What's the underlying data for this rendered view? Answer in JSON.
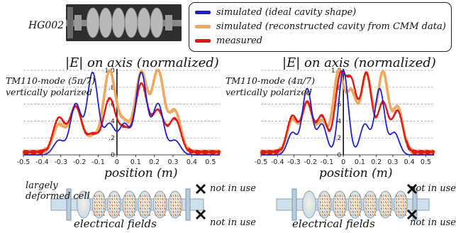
{
  "cavity_label": "HG002",
  "legend": [
    {
      "label": "simulated (ideal cavity shape)",
      "color": "#2020d0"
    },
    {
      "label": "simulated (reconstructed cavity from CMM data)",
      "color": "#f0a860"
    },
    {
      "label": "measured",
      "color": "#e01818"
    }
  ],
  "colors": {
    "ideal": "#2020d0",
    "reconstructed": "#f0a860",
    "measured": "#e01818"
  },
  "annotations": {
    "deformed_cell": "largely deformed cell",
    "electrical_fields": "electrical fields",
    "not_in_use": "not in use"
  },
  "chart_data": [
    {
      "type": "line",
      "title": "|E| on axis (normalized)",
      "mode_label_line1": "TM110-mode (5π/7)",
      "mode_label_line2": "vertically polarized",
      "xlabel": "position (m)",
      "xlim": [
        -0.5,
        0.55
      ],
      "ylim": [
        0,
        1.0
      ],
      "x_ticks": [
        -0.5,
        -0.4,
        -0.3,
        -0.2,
        -0.1,
        0,
        0.1,
        0.2,
        0.3,
        0.4,
        0.5
      ],
      "x_tick_labels": [
        "-0.5",
        "-0.4",
        "-0.3",
        "-0.2",
        "-0.1",
        "0",
        "0.1",
        "0.2",
        "0.3",
        "0.4",
        "0.5"
      ],
      "y_ticks": [
        0,
        0.2,
        0.4,
        0.6,
        0.8,
        1.0
      ],
      "y_tick_labels": [
        "0",
        ".2",
        ".4",
        ".6",
        ".8",
        "1.0"
      ],
      "grid": true,
      "series": [
        {
          "key": "ideal",
          "peaks": [
            [
              -0.31,
              0.17
            ],
            [
              -0.22,
              0.6
            ],
            [
              -0.13,
              0.97
            ],
            [
              -0.04,
              0.36
            ],
            [
              0.04,
              0.36
            ],
            [
              0.13,
              0.97
            ],
            [
              0.22,
              0.6
            ],
            [
              0.31,
              0.17
            ]
          ]
        },
        {
          "key": "reconstructed",
          "peaks": [
            [
              -0.31,
              0.34
            ],
            [
              -0.22,
              0.56
            ],
            [
              -0.13,
              0.2
            ],
            [
              -0.04,
              0.97
            ],
            [
              0.04,
              0.35
            ],
            [
              0.13,
              0.95
            ],
            [
              0.22,
              0.97
            ],
            [
              0.31,
              0.5
            ]
          ]
        },
        {
          "key": "measured",
          "peaks": [
            [
              -0.31,
              0.42
            ],
            [
              -0.22,
              0.55
            ],
            [
              -0.13,
              0.22
            ],
            [
              -0.04,
              0.64
            ],
            [
              0.04,
              0.28
            ],
            [
              0.13,
              0.82
            ],
            [
              0.22,
              0.5
            ],
            [
              0.31,
              0.41
            ]
          ]
        }
      ]
    },
    {
      "type": "line",
      "title": "|E| on axis (normalized)",
      "mode_label_line1": "TM110-mode (4π/7)",
      "mode_label_line2": "vertically polarized",
      "xlabel": "position (m)",
      "xlim": [
        -0.5,
        0.55
      ],
      "ylim": [
        0,
        1.0
      ],
      "x_ticks": [
        -0.5,
        -0.4,
        -0.3,
        -0.2,
        -0.1,
        0,
        0.1,
        0.2,
        0.3,
        0.4,
        0.5
      ],
      "x_tick_labels": [
        "-0.5",
        "-0.4",
        "-0.3",
        "-0.2",
        "-0.1",
        "0",
        "0.1",
        "0.2",
        "0.3",
        "0.4",
        "0.5"
      ],
      "y_ticks": [
        0,
        0.2,
        0.4,
        0.6,
        0.8,
        1.0
      ],
      "y_tick_labels": [
        "0",
        ".2",
        ".4",
        ".6",
        ".8",
        "1.0"
      ],
      "grid": true,
      "series": [
        {
          "key": "ideal",
          "peaks": [
            [
              -0.31,
              0.26
            ],
            [
              -0.22,
              0.78
            ],
            [
              -0.13,
              0.36
            ],
            [
              0.0,
              1.0
            ],
            [
              0.13,
              0.36
            ],
            [
              0.22,
              0.78
            ],
            [
              0.31,
              0.26
            ]
          ]
        },
        {
          "key": "reconstructed",
          "peaks": [
            [
              -0.31,
              0.4
            ],
            [
              -0.22,
              0.6
            ],
            [
              -0.13,
              0.38
            ],
            [
              -0.03,
              0.95
            ],
            [
              0.05,
              0.7
            ],
            [
              0.14,
              0.94
            ],
            [
              0.24,
              0.96
            ],
            [
              0.33,
              0.54
            ]
          ]
        },
        {
          "key": "measured",
          "peaks": [
            [
              -0.31,
              0.44
            ],
            [
              -0.22,
              0.6
            ],
            [
              -0.13,
              0.44
            ],
            [
              -0.02,
              0.88
            ],
            [
              0.05,
              0.8
            ],
            [
              0.14,
              0.94
            ],
            [
              0.24,
              0.6
            ],
            [
              0.33,
              0.5
            ]
          ]
        }
      ]
    }
  ]
}
